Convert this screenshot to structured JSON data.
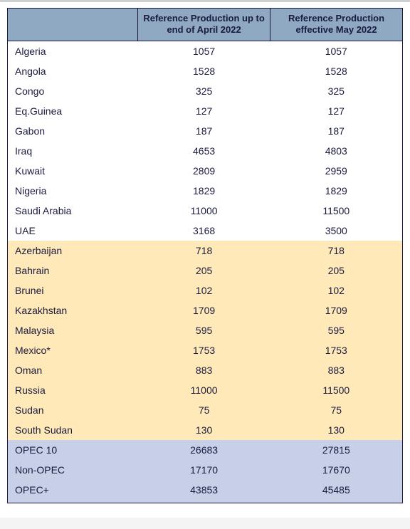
{
  "table": {
    "columns": [
      "",
      "Reference Production up to end of April 2022",
      "Reference Production effective May 2022"
    ],
    "column_header_bg": "#8ea9c1",
    "text_color": "#1a1a40",
    "border_color": "#1a1a40",
    "font_family": "Arial",
    "font_size_pt": 10,
    "header_font_size_pt": 10,
    "groups": [
      {
        "bg": "#ffffff",
        "rows": [
          {
            "country": "Algeria",
            "v1": "1057",
            "v2": "1057"
          },
          {
            "country": "Angola",
            "v1": "1528",
            "v2": "1528"
          },
          {
            "country": "Congo",
            "v1": "325",
            "v2": "325"
          },
          {
            "country": "Eq.Guinea",
            "v1": "127",
            "v2": "127"
          },
          {
            "country": "Gabon",
            "v1": "187",
            "v2": "187"
          },
          {
            "country": "Iraq",
            "v1": "4653",
            "v2": "4803"
          },
          {
            "country": "Kuwait",
            "v1": "2809",
            "v2": "2959"
          },
          {
            "country": "Nigeria",
            "v1": "1829",
            "v2": "1829"
          },
          {
            "country": "Saudi Arabia",
            "v1": "11000",
            "v2": "11500"
          },
          {
            "country": "UAE",
            "v1": "3168",
            "v2": "3500"
          }
        ]
      },
      {
        "bg": "#ffe9b8",
        "rows": [
          {
            "country": "Azerbaijan",
            "v1": "718",
            "v2": "718"
          },
          {
            "country": "Bahrain",
            "v1": "205",
            "v2": "205"
          },
          {
            "country": "Brunei",
            "v1": "102",
            "v2": "102"
          },
          {
            "country": "Kazakhstan",
            "v1": "1709",
            "v2": "1709"
          },
          {
            "country": "Malaysia",
            "v1": "595",
            "v2": "595"
          },
          {
            "country": "Mexico*",
            "v1": "1753",
            "v2": "1753"
          },
          {
            "country": "Oman",
            "v1": "883",
            "v2": "883"
          },
          {
            "country": "Russia",
            "v1": "11000",
            "v2": "11500"
          },
          {
            "country": "Sudan",
            "v1": "75",
            "v2": "75"
          },
          {
            "country": "South Sudan",
            "v1": "130",
            "v2": "130"
          }
        ]
      },
      {
        "bg": "#c7d0e6",
        "rows": [
          {
            "country": "OPEC 10",
            "v1": "26683",
            "v2": "27815"
          },
          {
            "country": "Non-OPEC",
            "v1": "17170",
            "v2": "17670"
          },
          {
            "country": "OPEC+",
            "v1": "43853",
            "v2": "45485"
          }
        ]
      }
    ]
  }
}
